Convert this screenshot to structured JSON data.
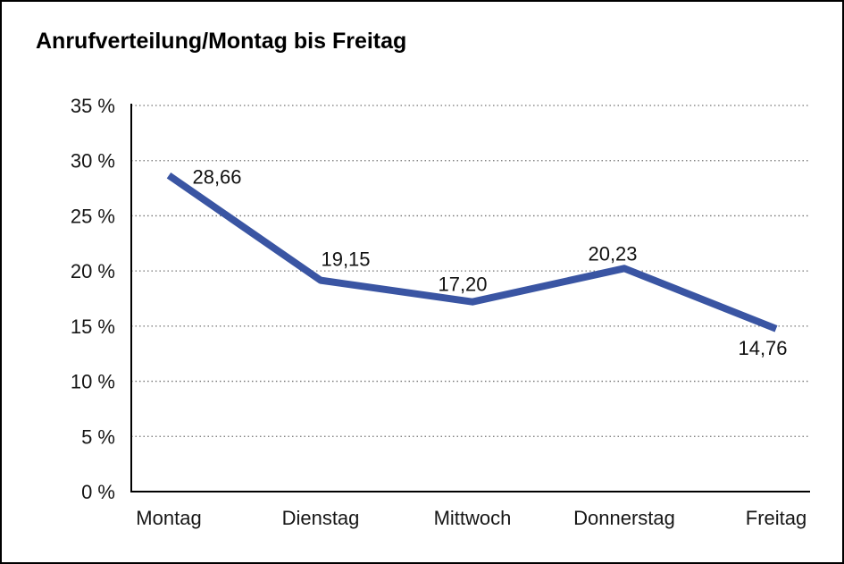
{
  "window": {
    "title": "Anrufverteilung/Montag bis Freitag"
  },
  "chart_data": {
    "type": "line",
    "title": "Anrufverteilung/Montag bis Freitag",
    "categories": [
      "Montag",
      "Dienstag",
      "Mittwoch",
      "Donnerstag",
      "Freitag"
    ],
    "values": [
      28.66,
      19.15,
      17.2,
      20.23,
      14.76
    ],
    "value_labels": [
      "28,66",
      "19,15",
      "17,20",
      "20,23",
      "14,76"
    ],
    "xlabel": "",
    "ylabel": "",
    "ylim": [
      0,
      35
    ],
    "y_tick_values": [
      0,
      5,
      10,
      15,
      20,
      25,
      30,
      35
    ],
    "y_tick_labels": [
      "0 %",
      "5 %",
      "10 %",
      "15 %",
      "20 %",
      "25 %",
      "30 %",
      "35 %"
    ],
    "grid": "horizontal-dotted",
    "legend": "none",
    "colors": {
      "line": "#3A55A3",
      "axis": "#000000",
      "gridline": "#737373",
      "text": "#111111",
      "background": "#ffffff",
      "border": "#000000"
    }
  }
}
